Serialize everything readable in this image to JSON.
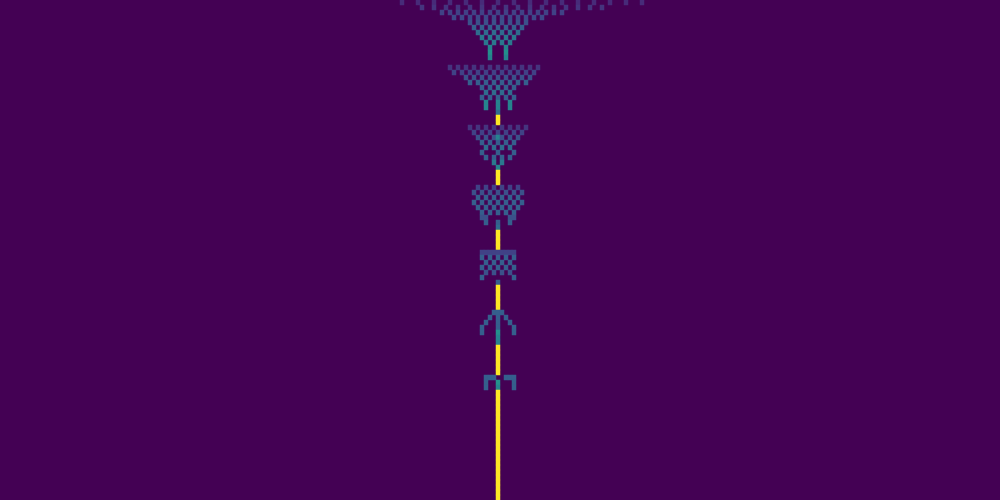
{
  "chart_data": {
    "type": "heatmap",
    "tick_labels": false,
    "xlim": [
      0,
      250
    ],
    "ylim": [
      0,
      100
    ],
    "color_range": [
      0,
      1
    ],
    "cells": [
      [
        100,
        0,
        0.12
      ],
      [
        104,
        0,
        0.12
      ],
      [
        108,
        0,
        0.12
      ],
      [
        112,
        0,
        0.12
      ],
      [
        116,
        0,
        0.12
      ],
      [
        120,
        0,
        0.12
      ],
      [
        124,
        0,
        0.12
      ],
      [
        128,
        0,
        0.12
      ],
      [
        132,
        0,
        0.12
      ],
      [
        136,
        0,
        0.12
      ],
      [
        140,
        0,
        0.12
      ],
      [
        144,
        0,
        0.12
      ],
      [
        148,
        0,
        0.12
      ],
      [
        152,
        0,
        0.12
      ],
      [
        156,
        0,
        0.12
      ],
      [
        160,
        0,
        0.12
      ],
      [
        105,
        1,
        0.15
      ],
      [
        108,
        1,
        0.15
      ],
      [
        111,
        1,
        0.15
      ],
      [
        114,
        1,
        0.15
      ],
      [
        117,
        1,
        0.15
      ],
      [
        120,
        1,
        0.15
      ],
      [
        123,
        1,
        0.15
      ],
      [
        126,
        1,
        0.15
      ],
      [
        129,
        1,
        0.15
      ],
      [
        132,
        1,
        0.15
      ],
      [
        135,
        1,
        0.15
      ],
      [
        138,
        1,
        0.15
      ],
      [
        141,
        1,
        0.15
      ],
      [
        144,
        1,
        0.15
      ],
      [
        147,
        1,
        0.15
      ],
      [
        150,
        1,
        0.15
      ],
      [
        110,
        2,
        0.2
      ],
      [
        112,
        2,
        0.2
      ],
      [
        114,
        2,
        0.2
      ],
      [
        116,
        2,
        0.2
      ],
      [
        118,
        2,
        0.2
      ],
      [
        120,
        2,
        0.2
      ],
      [
        122,
        2,
        0.2
      ],
      [
        124,
        2,
        0.2
      ],
      [
        126,
        2,
        0.2
      ],
      [
        128,
        2,
        0.2
      ],
      [
        130,
        2,
        0.2
      ],
      [
        132,
        2,
        0.2
      ],
      [
        134,
        2,
        0.2
      ],
      [
        136,
        2,
        0.2
      ],
      [
        138,
        2,
        0.2
      ],
      [
        140,
        2,
        0.2
      ],
      [
        113,
        3,
        0.22
      ],
      [
        115,
        3,
        0.22
      ],
      [
        117,
        3,
        0.22
      ],
      [
        119,
        3,
        0.22
      ],
      [
        121,
        3,
        0.22
      ],
      [
        123,
        3,
        0.22
      ],
      [
        125,
        3,
        0.22
      ],
      [
        127,
        3,
        0.22
      ],
      [
        129,
        3,
        0.22
      ],
      [
        131,
        3,
        0.22
      ],
      [
        133,
        3,
        0.22
      ],
      [
        135,
        3,
        0.22
      ],
      [
        117,
        4,
        0.25
      ],
      [
        119,
        4,
        0.25
      ],
      [
        121,
        4,
        0.25
      ],
      [
        123,
        4,
        0.25
      ],
      [
        125,
        4,
        0.25
      ],
      [
        127,
        4,
        0.25
      ],
      [
        129,
        4,
        0.25
      ],
      [
        131,
        4,
        0.25
      ],
      [
        118,
        5,
        0.3
      ],
      [
        120,
        5,
        0.3
      ],
      [
        122,
        5,
        0.3
      ],
      [
        124,
        5,
        0.3
      ],
      [
        126,
        5,
        0.3
      ],
      [
        128,
        5,
        0.3
      ],
      [
        130,
        5,
        0.3
      ],
      [
        119,
        6,
        0.35
      ],
      [
        121,
        6,
        0.35
      ],
      [
        123,
        6,
        0.35
      ],
      [
        125,
        6,
        0.35
      ],
      [
        127,
        6,
        0.35
      ],
      [
        129,
        6,
        0.35
      ],
      [
        120,
        7,
        0.4
      ],
      [
        122,
        7,
        0.4
      ],
      [
        124,
        7,
        0.35
      ],
      [
        126,
        7,
        0.4
      ],
      [
        128,
        7,
        0.4
      ],
      [
        121,
        8,
        0.4
      ],
      [
        123,
        8,
        0.4
      ],
      [
        125,
        8,
        0.4
      ],
      [
        127,
        8,
        0.4
      ],
      [
        122,
        9,
        0.45
      ],
      [
        126,
        9,
        0.45
      ],
      [
        122,
        10,
        0.5
      ],
      [
        126,
        10,
        0.5
      ],
      [
        122,
        11,
        0.45
      ],
      [
        126,
        11,
        0.45
      ],
      [
        112,
        13,
        0.15
      ],
      [
        114,
        13,
        0.15
      ],
      [
        116,
        13,
        0.15
      ],
      [
        118,
        13,
        0.15
      ],
      [
        120,
        13,
        0.15
      ],
      [
        122,
        13,
        0.15
      ],
      [
        124,
        13,
        0.15
      ],
      [
        126,
        13,
        0.15
      ],
      [
        128,
        13,
        0.15
      ],
      [
        130,
        13,
        0.15
      ],
      [
        132,
        13,
        0.15
      ],
      [
        134,
        13,
        0.15
      ],
      [
        113,
        14,
        0.2
      ],
      [
        115,
        14,
        0.2
      ],
      [
        117,
        14,
        0.2
      ],
      [
        119,
        14,
        0.2
      ],
      [
        121,
        14,
        0.2
      ],
      [
        123,
        14,
        0.2
      ],
      [
        125,
        14,
        0.2
      ],
      [
        127,
        14,
        0.2
      ],
      [
        129,
        14,
        0.2
      ],
      [
        131,
        14,
        0.2
      ],
      [
        133,
        14,
        0.2
      ],
      [
        116,
        15,
        0.25
      ],
      [
        118,
        15,
        0.25
      ],
      [
        120,
        15,
        0.25
      ],
      [
        122,
        15,
        0.25
      ],
      [
        124,
        15,
        0.25
      ],
      [
        126,
        15,
        0.25
      ],
      [
        128,
        15,
        0.25
      ],
      [
        130,
        15,
        0.25
      ],
      [
        132,
        15,
        0.25
      ],
      [
        117,
        16,
        0.3
      ],
      [
        119,
        16,
        0.3
      ],
      [
        121,
        16,
        0.3
      ],
      [
        123,
        16,
        0.3
      ],
      [
        125,
        16,
        0.3
      ],
      [
        127,
        16,
        0.3
      ],
      [
        129,
        16,
        0.3
      ],
      [
        131,
        16,
        0.3
      ],
      [
        120,
        17,
        0.3
      ],
      [
        122,
        17,
        0.3
      ],
      [
        124,
        17,
        0.35
      ],
      [
        126,
        17,
        0.3
      ],
      [
        128,
        17,
        0.3
      ],
      [
        121,
        18,
        0.35
      ],
      [
        123,
        18,
        0.35
      ],
      [
        125,
        18,
        0.35
      ],
      [
        127,
        18,
        0.35
      ],
      [
        120,
        19,
        0.3
      ],
      [
        122,
        19,
        0.3
      ],
      [
        124,
        19,
        0.3
      ],
      [
        126,
        19,
        0.3
      ],
      [
        128,
        19,
        0.3
      ],
      [
        121,
        20,
        0.45
      ],
      [
        124,
        20,
        0.45
      ],
      [
        127,
        20,
        0.45
      ],
      [
        121,
        21,
        0.45
      ],
      [
        124,
        21,
        0.45
      ],
      [
        127,
        21,
        0.45
      ],
      [
        124,
        22,
        0.35
      ],
      [
        124,
        23,
        1
      ],
      [
        124,
        24,
        1
      ],
      [
        117,
        25,
        0.15
      ],
      [
        119,
        25,
        0.15
      ],
      [
        121,
        25,
        0.15
      ],
      [
        123,
        25,
        0.15
      ],
      [
        125,
        25,
        0.15
      ],
      [
        127,
        25,
        0.15
      ],
      [
        129,
        25,
        0.15
      ],
      [
        131,
        25,
        0.15
      ],
      [
        118,
        26,
        0.2
      ],
      [
        120,
        26,
        0.2
      ],
      [
        122,
        26,
        0.2
      ],
      [
        124,
        26,
        0.2
      ],
      [
        126,
        26,
        0.2
      ],
      [
        128,
        26,
        0.2
      ],
      [
        130,
        26,
        0.2
      ],
      [
        119,
        27,
        0.25
      ],
      [
        121,
        27,
        0.25
      ],
      [
        123,
        27,
        0.25
      ],
      [
        124,
        27,
        0.45
      ],
      [
        125,
        27,
        0.25
      ],
      [
        127,
        27,
        0.25
      ],
      [
        129,
        27,
        0.25
      ],
      [
        120,
        28,
        0.3
      ],
      [
        122,
        28,
        0.3
      ],
      [
        124,
        28,
        0.3
      ],
      [
        126,
        28,
        0.3
      ],
      [
        128,
        28,
        0.3
      ],
      [
        121,
        29,
        0.35
      ],
      [
        123,
        29,
        0.35
      ],
      [
        125,
        29,
        0.35
      ],
      [
        127,
        29,
        0.35
      ],
      [
        120,
        30,
        0.3
      ],
      [
        124,
        30,
        0.3
      ],
      [
        128,
        30,
        0.3
      ],
      [
        121,
        31,
        0.3
      ],
      [
        123,
        31,
        0.3
      ],
      [
        125,
        31,
        0.3
      ],
      [
        127,
        31,
        0.3
      ],
      [
        123,
        32,
        0.4
      ],
      [
        125,
        32,
        0.4
      ],
      [
        124,
        33,
        0.45
      ],
      [
        124,
        34,
        1
      ],
      [
        124,
        35,
        1
      ],
      [
        124,
        36,
        1
      ],
      [
        119,
        37,
        0.2
      ],
      [
        121,
        37,
        0.2
      ],
      [
        123,
        37,
        0.2
      ],
      [
        125,
        37,
        0.2
      ],
      [
        127,
        37,
        0.2
      ],
      [
        129,
        37,
        0.2
      ],
      [
        118,
        38,
        0.25
      ],
      [
        120,
        38,
        0.25
      ],
      [
        122,
        38,
        0.25
      ],
      [
        124,
        38,
        0.25
      ],
      [
        126,
        38,
        0.25
      ],
      [
        128,
        38,
        0.25
      ],
      [
        130,
        38,
        0.25
      ],
      [
        119,
        39,
        0.3
      ],
      [
        121,
        39,
        0.3
      ],
      [
        123,
        39,
        0.3
      ],
      [
        125,
        39,
        0.3
      ],
      [
        127,
        39,
        0.3
      ],
      [
        129,
        39,
        0.3
      ],
      [
        118,
        40,
        0.3
      ],
      [
        120,
        40,
        0.3
      ],
      [
        122,
        40,
        0.3
      ],
      [
        124,
        40,
        0.3
      ],
      [
        126,
        40,
        0.3
      ],
      [
        128,
        40,
        0.3
      ],
      [
        130,
        40,
        0.3
      ],
      [
        119,
        41,
        0.3
      ],
      [
        121,
        41,
        0.3
      ],
      [
        123,
        41,
        0.3
      ],
      [
        125,
        41,
        0.3
      ],
      [
        127,
        41,
        0.3
      ],
      [
        129,
        41,
        0.3
      ],
      [
        120,
        42,
        0.3
      ],
      [
        122,
        42,
        0.3
      ],
      [
        124,
        42,
        0.3
      ],
      [
        126,
        42,
        0.3
      ],
      [
        128,
        42,
        0.3
      ],
      [
        120,
        43,
        0.25
      ],
      [
        121,
        43,
        0.25
      ],
      [
        127,
        43,
        0.25
      ],
      [
        128,
        43,
        0.25
      ],
      [
        121,
        44,
        0.3
      ],
      [
        124,
        44,
        0.3
      ],
      [
        127,
        44,
        0.3
      ],
      [
        124,
        45,
        0.35
      ],
      [
        124,
        46,
        1
      ],
      [
        124,
        47,
        1
      ],
      [
        124,
        48,
        1
      ],
      [
        124,
        49,
        1
      ],
      [
        120,
        50,
        0.2
      ],
      [
        121,
        50,
        0.2
      ],
      [
        122,
        50,
        0.2
      ],
      [
        123,
        50,
        0.2
      ],
      [
        124,
        50,
        0.2
      ],
      [
        125,
        50,
        0.2
      ],
      [
        126,
        50,
        0.2
      ],
      [
        127,
        50,
        0.2
      ],
      [
        128,
        50,
        0.2
      ],
      [
        120,
        51,
        0.3
      ],
      [
        122,
        51,
        0.3
      ],
      [
        124,
        51,
        0.3
      ],
      [
        126,
        51,
        0.3
      ],
      [
        128,
        51,
        0.3
      ],
      [
        121,
        52,
        0.3
      ],
      [
        123,
        52,
        0.3
      ],
      [
        125,
        52,
        0.3
      ],
      [
        127,
        52,
        0.3
      ],
      [
        120,
        53,
        0.3
      ],
      [
        122,
        53,
        0.3
      ],
      [
        124,
        53,
        0.3
      ],
      [
        126,
        53,
        0.3
      ],
      [
        128,
        53,
        0.3
      ],
      [
        121,
        54,
        0.25
      ],
      [
        123,
        54,
        0.25
      ],
      [
        125,
        54,
        0.25
      ],
      [
        127,
        54,
        0.25
      ],
      [
        120,
        55,
        0.3
      ],
      [
        128,
        55,
        0.3
      ],
      [
        124,
        56,
        0.3
      ],
      [
        124,
        57,
        1
      ],
      [
        124,
        58,
        1
      ],
      [
        124,
        59,
        1
      ],
      [
        124,
        60,
        1
      ],
      [
        124,
        61,
        1
      ],
      [
        123,
        62,
        0.3
      ],
      [
        124,
        62,
        0.3
      ],
      [
        125,
        62,
        0.3
      ],
      [
        122,
        63,
        0.3
      ],
      [
        124,
        63,
        0.3
      ],
      [
        126,
        63,
        0.3
      ],
      [
        121,
        64,
        0.3
      ],
      [
        124,
        64,
        0.3
      ],
      [
        127,
        64,
        0.3
      ],
      [
        120,
        65,
        0.3
      ],
      [
        124,
        65,
        0.3
      ],
      [
        128,
        65,
        0.3
      ],
      [
        120,
        66,
        0.3
      ],
      [
        124,
        66,
        0.5
      ],
      [
        128,
        66,
        0.3
      ],
      [
        124,
        67,
        0.45
      ],
      [
        124,
        68,
        0.45
      ],
      [
        124,
        69,
        1
      ],
      [
        124,
        70,
        1
      ],
      [
        124,
        71,
        1
      ],
      [
        124,
        72,
        1
      ],
      [
        124,
        73,
        1
      ],
      [
        124,
        74,
        1
      ],
      [
        121,
        75,
        0.3
      ],
      [
        122,
        75,
        0.3
      ],
      [
        123,
        75,
        0.3
      ],
      [
        126,
        75,
        0.3
      ],
      [
        127,
        75,
        0.3
      ],
      [
        128,
        75,
        0.3
      ],
      [
        121,
        76,
        0.3
      ],
      [
        124,
        76,
        0.5
      ],
      [
        128,
        76,
        0.3
      ],
      [
        121,
        77,
        0.3
      ],
      [
        124,
        77,
        0.45
      ],
      [
        128,
        77,
        0.3
      ],
      [
        124,
        78,
        1
      ],
      [
        124,
        79,
        1
      ],
      [
        124,
        80,
        1
      ],
      [
        124,
        81,
        1
      ],
      [
        124,
        82,
        1
      ],
      [
        124,
        83,
        1
      ],
      [
        124,
        84,
        1
      ],
      [
        124,
        85,
        1
      ],
      [
        124,
        86,
        1
      ],
      [
        124,
        87,
        1
      ],
      [
        124,
        88,
        1
      ],
      [
        124,
        89,
        1
      ],
      [
        124,
        90,
        1
      ],
      [
        124,
        91,
        1
      ],
      [
        124,
        92,
        1
      ],
      [
        124,
        93,
        1
      ],
      [
        124,
        94,
        1
      ],
      [
        124,
        95,
        1
      ],
      [
        124,
        96,
        1
      ],
      [
        124,
        97,
        1
      ],
      [
        124,
        98,
        1
      ],
      [
        124,
        99,
        1
      ]
    ]
  }
}
